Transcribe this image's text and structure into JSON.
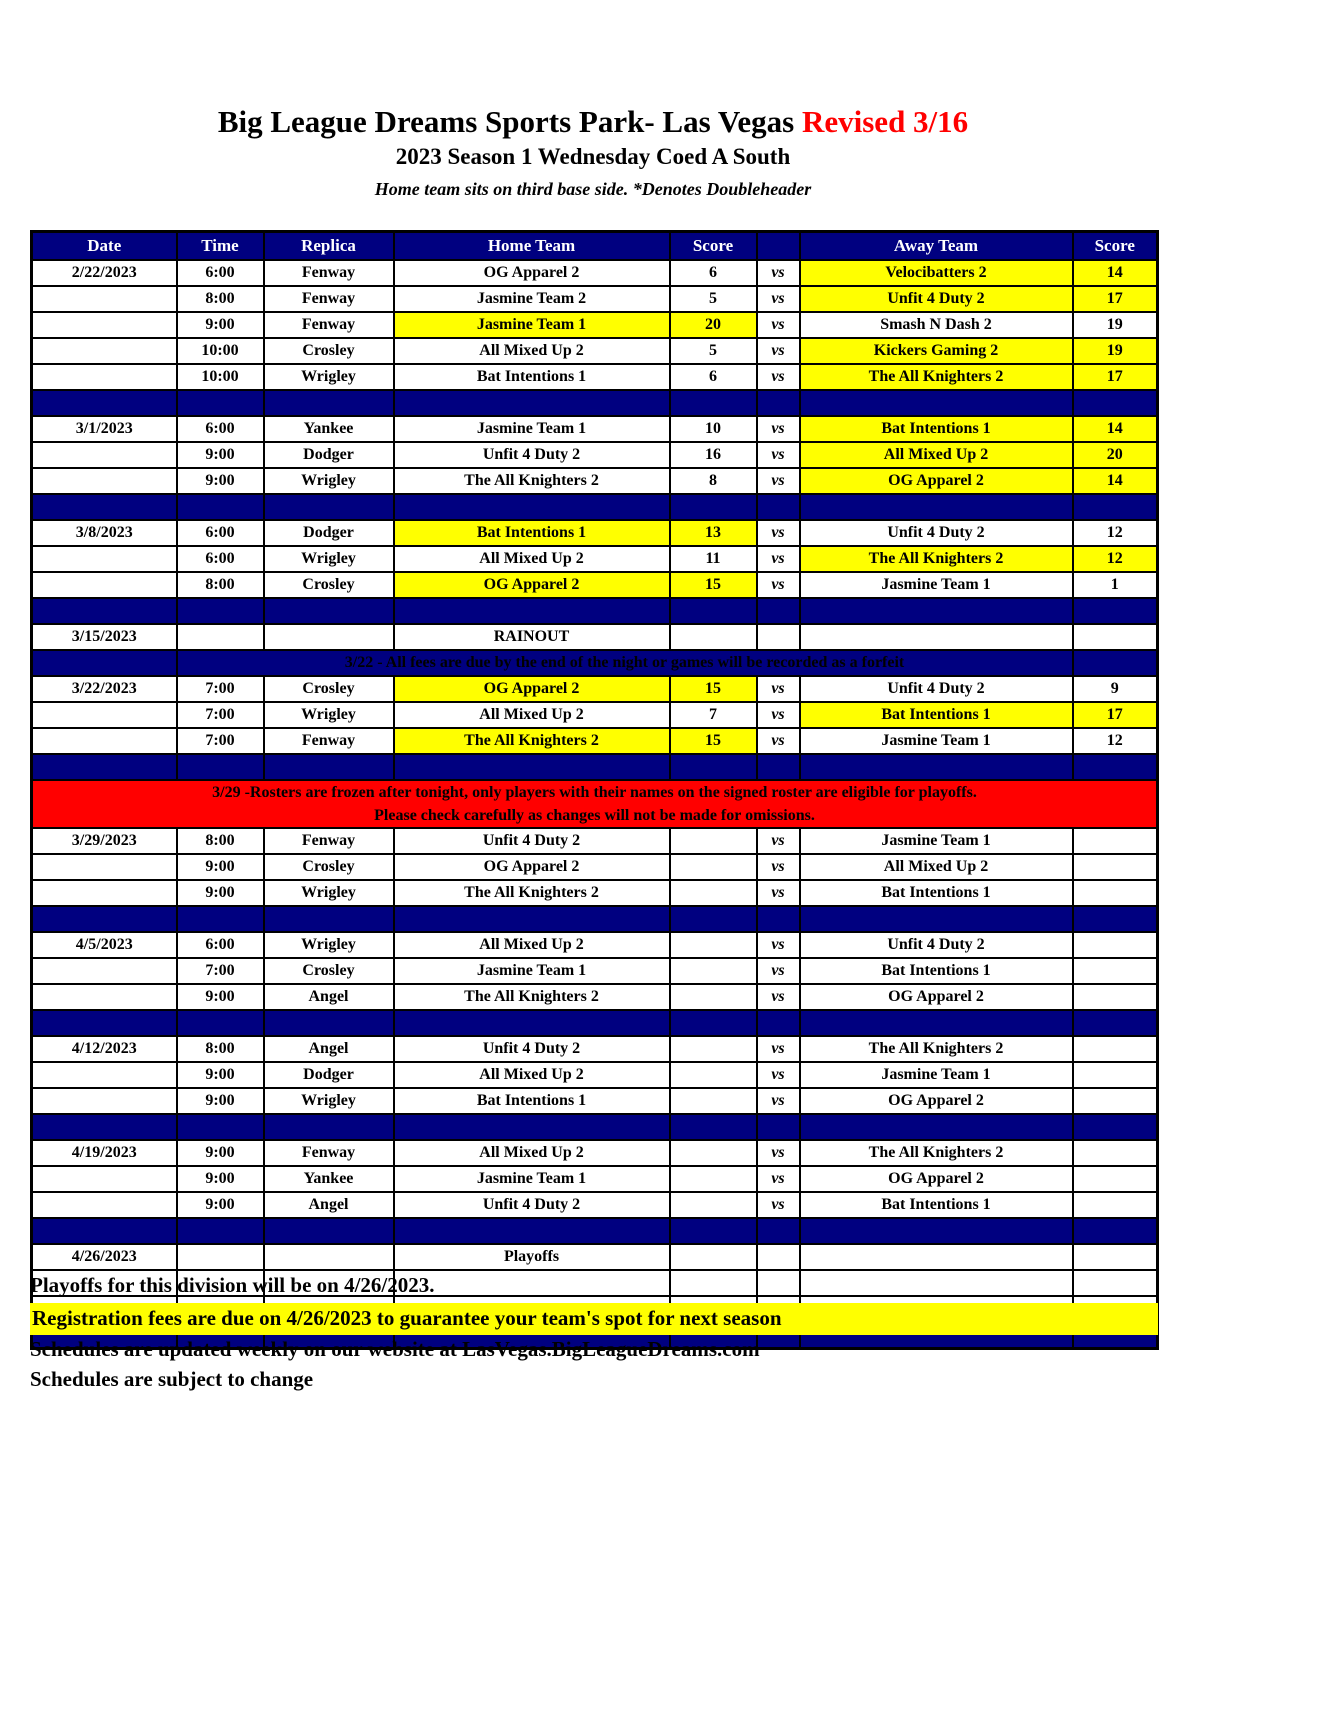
{
  "page": {
    "title": "Big League Dreams Sports Park- Las Vegas ",
    "revision": "Revised 3/16",
    "subtitle": "2023 Season 1 Wednesday Coed A South",
    "note": "Home team sits on third base side.  *Denotes Doubleheader"
  },
  "colors": {
    "navy": "#000080",
    "highlight_yellow": "#ffff00",
    "notice_red": "#ff0000",
    "header_text": "#ffffff"
  },
  "table": {
    "headers": [
      "Date",
      "Time",
      "Replica",
      "Home Team",
      "Score",
      "",
      "Away Team",
      "Score"
    ],
    "vs_label": "vs",
    "rows": [
      {
        "type": "game",
        "date": "2/22/2023",
        "time": "6:00",
        "replica": "Fenway",
        "home": "OG Apparel 2",
        "home_score": "6",
        "away": "Velocibatters 2",
        "away_score": "14",
        "winner": "away"
      },
      {
        "type": "game",
        "date": "",
        "time": "8:00",
        "replica": "Fenway",
        "home": "Jasmine Team 2",
        "home_score": "5",
        "away": "Unfit 4 Duty 2",
        "away_score": "17",
        "winner": "away"
      },
      {
        "type": "game",
        "date": "",
        "time": "9:00",
        "replica": "Fenway",
        "home": "Jasmine Team 1",
        "home_score": "20",
        "away": "Smash N Dash 2",
        "away_score": "19",
        "winner": "home"
      },
      {
        "type": "game",
        "date": "",
        "time": "10:00",
        "replica": "Crosley",
        "home": "All Mixed Up 2",
        "home_score": "5",
        "away": "Kickers Gaming 2",
        "away_score": "19",
        "winner": "away"
      },
      {
        "type": "game",
        "date": "",
        "time": "10:00",
        "replica": "Wrigley",
        "home": "Bat Intentions 1",
        "home_score": "6",
        "away": "The All Knighters 2",
        "away_score": "17",
        "winner": "away"
      },
      {
        "type": "separator"
      },
      {
        "type": "game",
        "date": "3/1/2023",
        "time": "6:00",
        "replica": "Yankee",
        "home": "Jasmine Team 1",
        "home_score": "10",
        "away": "Bat Intentions 1",
        "away_score": "14",
        "winner": "away"
      },
      {
        "type": "game",
        "date": "",
        "time": "9:00",
        "replica": "Dodger",
        "home": "Unfit 4 Duty 2",
        "home_score": "16",
        "away": "All Mixed Up 2",
        "away_score": "20",
        "winner": "away"
      },
      {
        "type": "game",
        "date": "",
        "time": "9:00",
        "replica": "Wrigley",
        "home": "The All Knighters 2",
        "home_score": "8",
        "away": "OG Apparel 2",
        "away_score": "14",
        "winner": "away"
      },
      {
        "type": "separator"
      },
      {
        "type": "game",
        "date": "3/8/2023",
        "time": "6:00",
        "replica": "Dodger",
        "home": "Bat Intentions 1",
        "home_score": "13",
        "away": "Unfit 4 Duty 2",
        "away_score": "12",
        "winner": "home"
      },
      {
        "type": "game",
        "date": "",
        "time": "6:00",
        "replica": "Wrigley",
        "home": "All Mixed Up 2",
        "home_score": "11",
        "away": "The All Knighters 2",
        "away_score": "12",
        "winner": "away"
      },
      {
        "type": "game",
        "date": "",
        "time": "8:00",
        "replica": "Crosley",
        "home": "OG Apparel 2",
        "home_score": "15",
        "away": "Jasmine Team 1",
        "away_score": "1",
        "winner": "home"
      },
      {
        "type": "separator"
      },
      {
        "type": "label",
        "date": "3/15/2023",
        "label": "RAINOUT"
      },
      {
        "type": "notice_blue",
        "text": "3/22 - All fees are due by the end of the night or games will be recorded as a forfeit"
      },
      {
        "type": "game",
        "date": "3/22/2023",
        "time": "7:00",
        "replica": "Crosley",
        "home": "OG Apparel 2",
        "home_score": "15",
        "away": "Unfit 4 Duty 2",
        "away_score": "9",
        "winner": "home"
      },
      {
        "type": "game",
        "date": "",
        "time": "7:00",
        "replica": "Wrigley",
        "home": "All Mixed Up 2",
        "home_score": "7",
        "away": "Bat Intentions 1",
        "away_score": "17",
        "winner": "away"
      },
      {
        "type": "game",
        "date": "",
        "time": "7:00",
        "replica": "Fenway",
        "home": "The All Knighters 2",
        "home_score": "15",
        "away": "Jasmine Team 1",
        "away_score": "12",
        "winner": "home"
      },
      {
        "type": "separator"
      },
      {
        "type": "notice_red",
        "lines": [
          "3/29 -Rosters are frozen after tonight, only players with their names on the signed roster are eligible for playoffs.",
          "Please check carefully as changes will not be made for omissions."
        ]
      },
      {
        "type": "game",
        "date": "3/29/2023",
        "time": "8:00",
        "replica": "Fenway",
        "home": "Unfit 4 Duty 2",
        "home_score": "",
        "away": "Jasmine Team 1",
        "away_score": "",
        "winner": ""
      },
      {
        "type": "game",
        "date": "",
        "time": "9:00",
        "replica": "Crosley",
        "home": "OG Apparel 2",
        "home_score": "",
        "away": "All Mixed Up 2",
        "away_score": "",
        "winner": ""
      },
      {
        "type": "game",
        "date": "",
        "time": "9:00",
        "replica": "Wrigley",
        "home": "The All Knighters 2",
        "home_score": "",
        "away": "Bat Intentions 1",
        "away_score": "",
        "winner": ""
      },
      {
        "type": "separator"
      },
      {
        "type": "game",
        "date": "4/5/2023",
        "time": "6:00",
        "replica": "Wrigley",
        "home": "All Mixed Up 2",
        "home_score": "",
        "away": "Unfit 4 Duty 2",
        "away_score": "",
        "winner": ""
      },
      {
        "type": "game",
        "date": "",
        "time": "7:00",
        "replica": "Crosley",
        "home": "Jasmine Team 1",
        "home_score": "",
        "away": "Bat Intentions 1",
        "away_score": "",
        "winner": ""
      },
      {
        "type": "game",
        "date": "",
        "time": "9:00",
        "replica": "Angel",
        "home": "The All Knighters 2",
        "home_score": "",
        "away": "OG Apparel 2",
        "away_score": "",
        "winner": ""
      },
      {
        "type": "separator"
      },
      {
        "type": "game",
        "date": "4/12/2023",
        "time": "8:00",
        "replica": "Angel",
        "home": "Unfit 4 Duty 2",
        "home_score": "",
        "away": "The All Knighters 2",
        "away_score": "",
        "winner": ""
      },
      {
        "type": "game",
        "date": "",
        "time": "9:00",
        "replica": "Dodger",
        "home": "All Mixed Up 2",
        "home_score": "",
        "away": "Jasmine Team 1",
        "away_score": "",
        "winner": ""
      },
      {
        "type": "game",
        "date": "",
        "time": "9:00",
        "replica": "Wrigley",
        "home": "Bat Intentions 1",
        "home_score": "",
        "away": "OG Apparel 2",
        "away_score": "",
        "winner": ""
      },
      {
        "type": "separator"
      },
      {
        "type": "game",
        "date": "4/19/2023",
        "time": "9:00",
        "replica": "Fenway",
        "home": "All Mixed Up 2",
        "home_score": "",
        "away": "The All Knighters 2",
        "away_score": "",
        "winner": ""
      },
      {
        "type": "game",
        "date": "",
        "time": "9:00",
        "replica": "Yankee",
        "home": "Jasmine Team 1",
        "home_score": "",
        "away": "OG Apparel 2",
        "away_score": "",
        "winner": ""
      },
      {
        "type": "game",
        "date": "",
        "time": "9:00",
        "replica": "Angel",
        "home": "Unfit 4 Duty 2",
        "home_score": "",
        "away": "Bat Intentions 1",
        "away_score": "",
        "winner": ""
      },
      {
        "type": "separator"
      },
      {
        "type": "label",
        "date": "4/26/2023",
        "label": "Playoffs"
      },
      {
        "type": "empty"
      },
      {
        "type": "empty"
      },
      {
        "type": "separator"
      }
    ]
  },
  "footer": {
    "lines": [
      {
        "text": "Playoffs for this division will be on 4/26/2023.",
        "highlight": false
      },
      {
        "text": "Registration fees are due on 4/26/2023 to guarantee your team's spot for next season",
        "highlight": true
      },
      {
        "text": "Schedules are updated weekly on our website at LasVegas.BigLeagueDreams.com",
        "highlight": false
      },
      {
        "text": "Schedules are subject to change",
        "highlight": false
      }
    ]
  }
}
